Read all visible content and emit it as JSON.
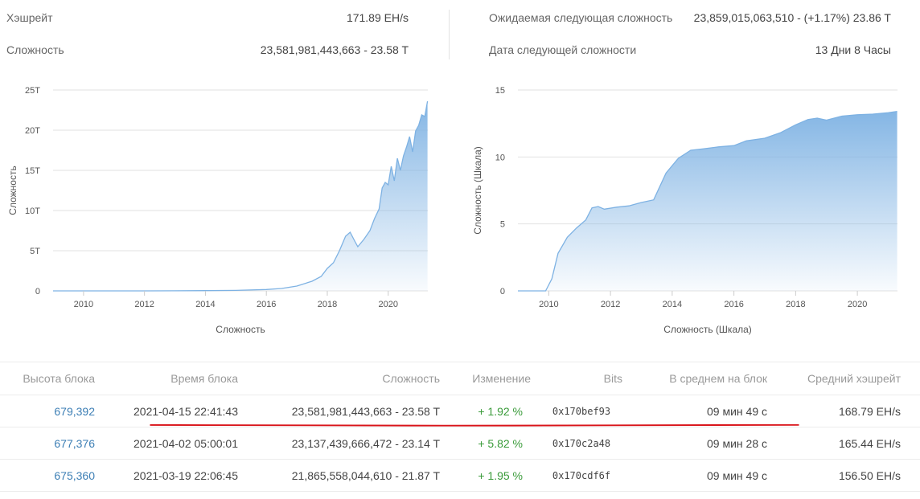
{
  "stats": {
    "hashrate_label": "Хэшрейт",
    "hashrate_value": "171.89 EH/s",
    "difficulty_label": "Сложность",
    "difficulty_value": "23,581,981,443,663 - 23.58 T",
    "expected_label": "Ожидаемая следующая сложность",
    "expected_value": "23,859,015,063,510 - (+1.17%) 23.86 T",
    "next_date_label": "Дата следующей сложности",
    "next_date_value": "13 Дни 8 Часы"
  },
  "chart_data": [
    {
      "type": "area",
      "title": "",
      "xlabel": "Сложность",
      "ylabel": "Сложность",
      "x_ticks": [
        "2010",
        "2012",
        "2014",
        "2016",
        "2018",
        "2020"
      ],
      "y_ticks": [
        "0",
        "5T",
        "10T",
        "15T",
        "20T",
        "25T"
      ],
      "xlim": [
        2009.0,
        2021.3
      ],
      "ylim": [
        0,
        25
      ],
      "grid": true,
      "series": [
        {
          "x": [
            2009.0,
            2010.0,
            2011.0,
            2012.0,
            2013.0,
            2014.0,
            2015.0,
            2016.0,
            2016.5,
            2017.0,
            2017.5,
            2017.8,
            2018.0,
            2018.2,
            2018.4,
            2018.6,
            2018.75,
            2018.9,
            2019.0,
            2019.2,
            2019.4,
            2019.55,
            2019.7,
            2019.8,
            2019.9,
            2020.0,
            2020.1,
            2020.2,
            2020.3,
            2020.4,
            2020.5,
            2020.6,
            2020.7,
            2020.8,
            2020.9,
            2021.0,
            2021.1,
            2021.2,
            2021.29
          ],
          "values": [
            0,
            0,
            0,
            0,
            0.01,
            0.03,
            0.06,
            0.17,
            0.3,
            0.6,
            1.2,
            1.8,
            2.8,
            3.5,
            5.0,
            6.8,
            7.3,
            6.2,
            5.5,
            6.4,
            7.5,
            9.0,
            10.2,
            12.8,
            13.5,
            13.2,
            15.5,
            13.7,
            16.5,
            15.0,
            16.8,
            17.9,
            19.2,
            17.3,
            19.9,
            20.6,
            21.9,
            21.7,
            23.6
          ]
        }
      ]
    },
    {
      "type": "area",
      "title": "",
      "xlabel": "Сложность (Шкала)",
      "ylabel": "Сложность (Шкала)",
      "x_ticks": [
        "2010",
        "2012",
        "2014",
        "2016",
        "2018",
        "2020"
      ],
      "y_ticks": [
        "0",
        "5",
        "10",
        "15"
      ],
      "xlim": [
        2009.0,
        2021.3
      ],
      "ylim": [
        0,
        15
      ],
      "grid": true,
      "series": [
        {
          "x": [
            2009.0,
            2009.9,
            2010.1,
            2010.3,
            2010.6,
            2010.9,
            2011.2,
            2011.4,
            2011.6,
            2011.8,
            2012.2,
            2012.6,
            2013.0,
            2013.4,
            2013.8,
            2014.2,
            2014.6,
            2015.0,
            2015.5,
            2016.0,
            2016.4,
            2017.0,
            2017.5,
            2018.0,
            2018.4,
            2018.7,
            2019.0,
            2019.5,
            2020.0,
            2020.5,
            2021.0,
            2021.29
          ],
          "values": [
            0,
            0,
            0.9,
            2.8,
            4.0,
            4.7,
            5.3,
            6.2,
            6.3,
            6.1,
            6.25,
            6.35,
            6.6,
            6.8,
            8.8,
            9.9,
            10.5,
            10.6,
            10.75,
            10.85,
            11.2,
            11.4,
            11.8,
            12.4,
            12.8,
            12.9,
            12.75,
            13.05,
            13.15,
            13.2,
            13.3,
            13.4
          ]
        }
      ]
    }
  ],
  "table": {
    "headers": [
      "Высота блока",
      "Время блока",
      "Сложность",
      "Изменение",
      "Bits",
      "В среднем на блок",
      "Средний хэшрейт"
    ],
    "rows": [
      [
        "679,392",
        "2021-04-15 22:41:43",
        "23,581,981,443,663 - 23.58 T",
        "+ 1.92 %",
        "0x170bef93",
        "09 мин 49 с",
        "168.79 EH/s"
      ],
      [
        "677,376",
        "2021-04-02 05:00:01",
        "23,137,439,666,472 - 23.14 T",
        "+ 5.82 %",
        "0x170c2a48",
        "09 мин 28 с",
        "165.44 EH/s"
      ],
      [
        "675,360",
        "2021-03-19 22:06:45",
        "21,865,558,044,610 - 21.87 T",
        "+ 1.95 %",
        "0x170cdf6f",
        "09 мин 49 с",
        "156.50 EH/s"
      ]
    ]
  },
  "colors": {
    "link": "#3d7fb5",
    "positive": "#3a9b3a",
    "area_line": "#7eb2e3",
    "area_fill_top": "#7eb2e3",
    "annotation": "#d9141a"
  }
}
